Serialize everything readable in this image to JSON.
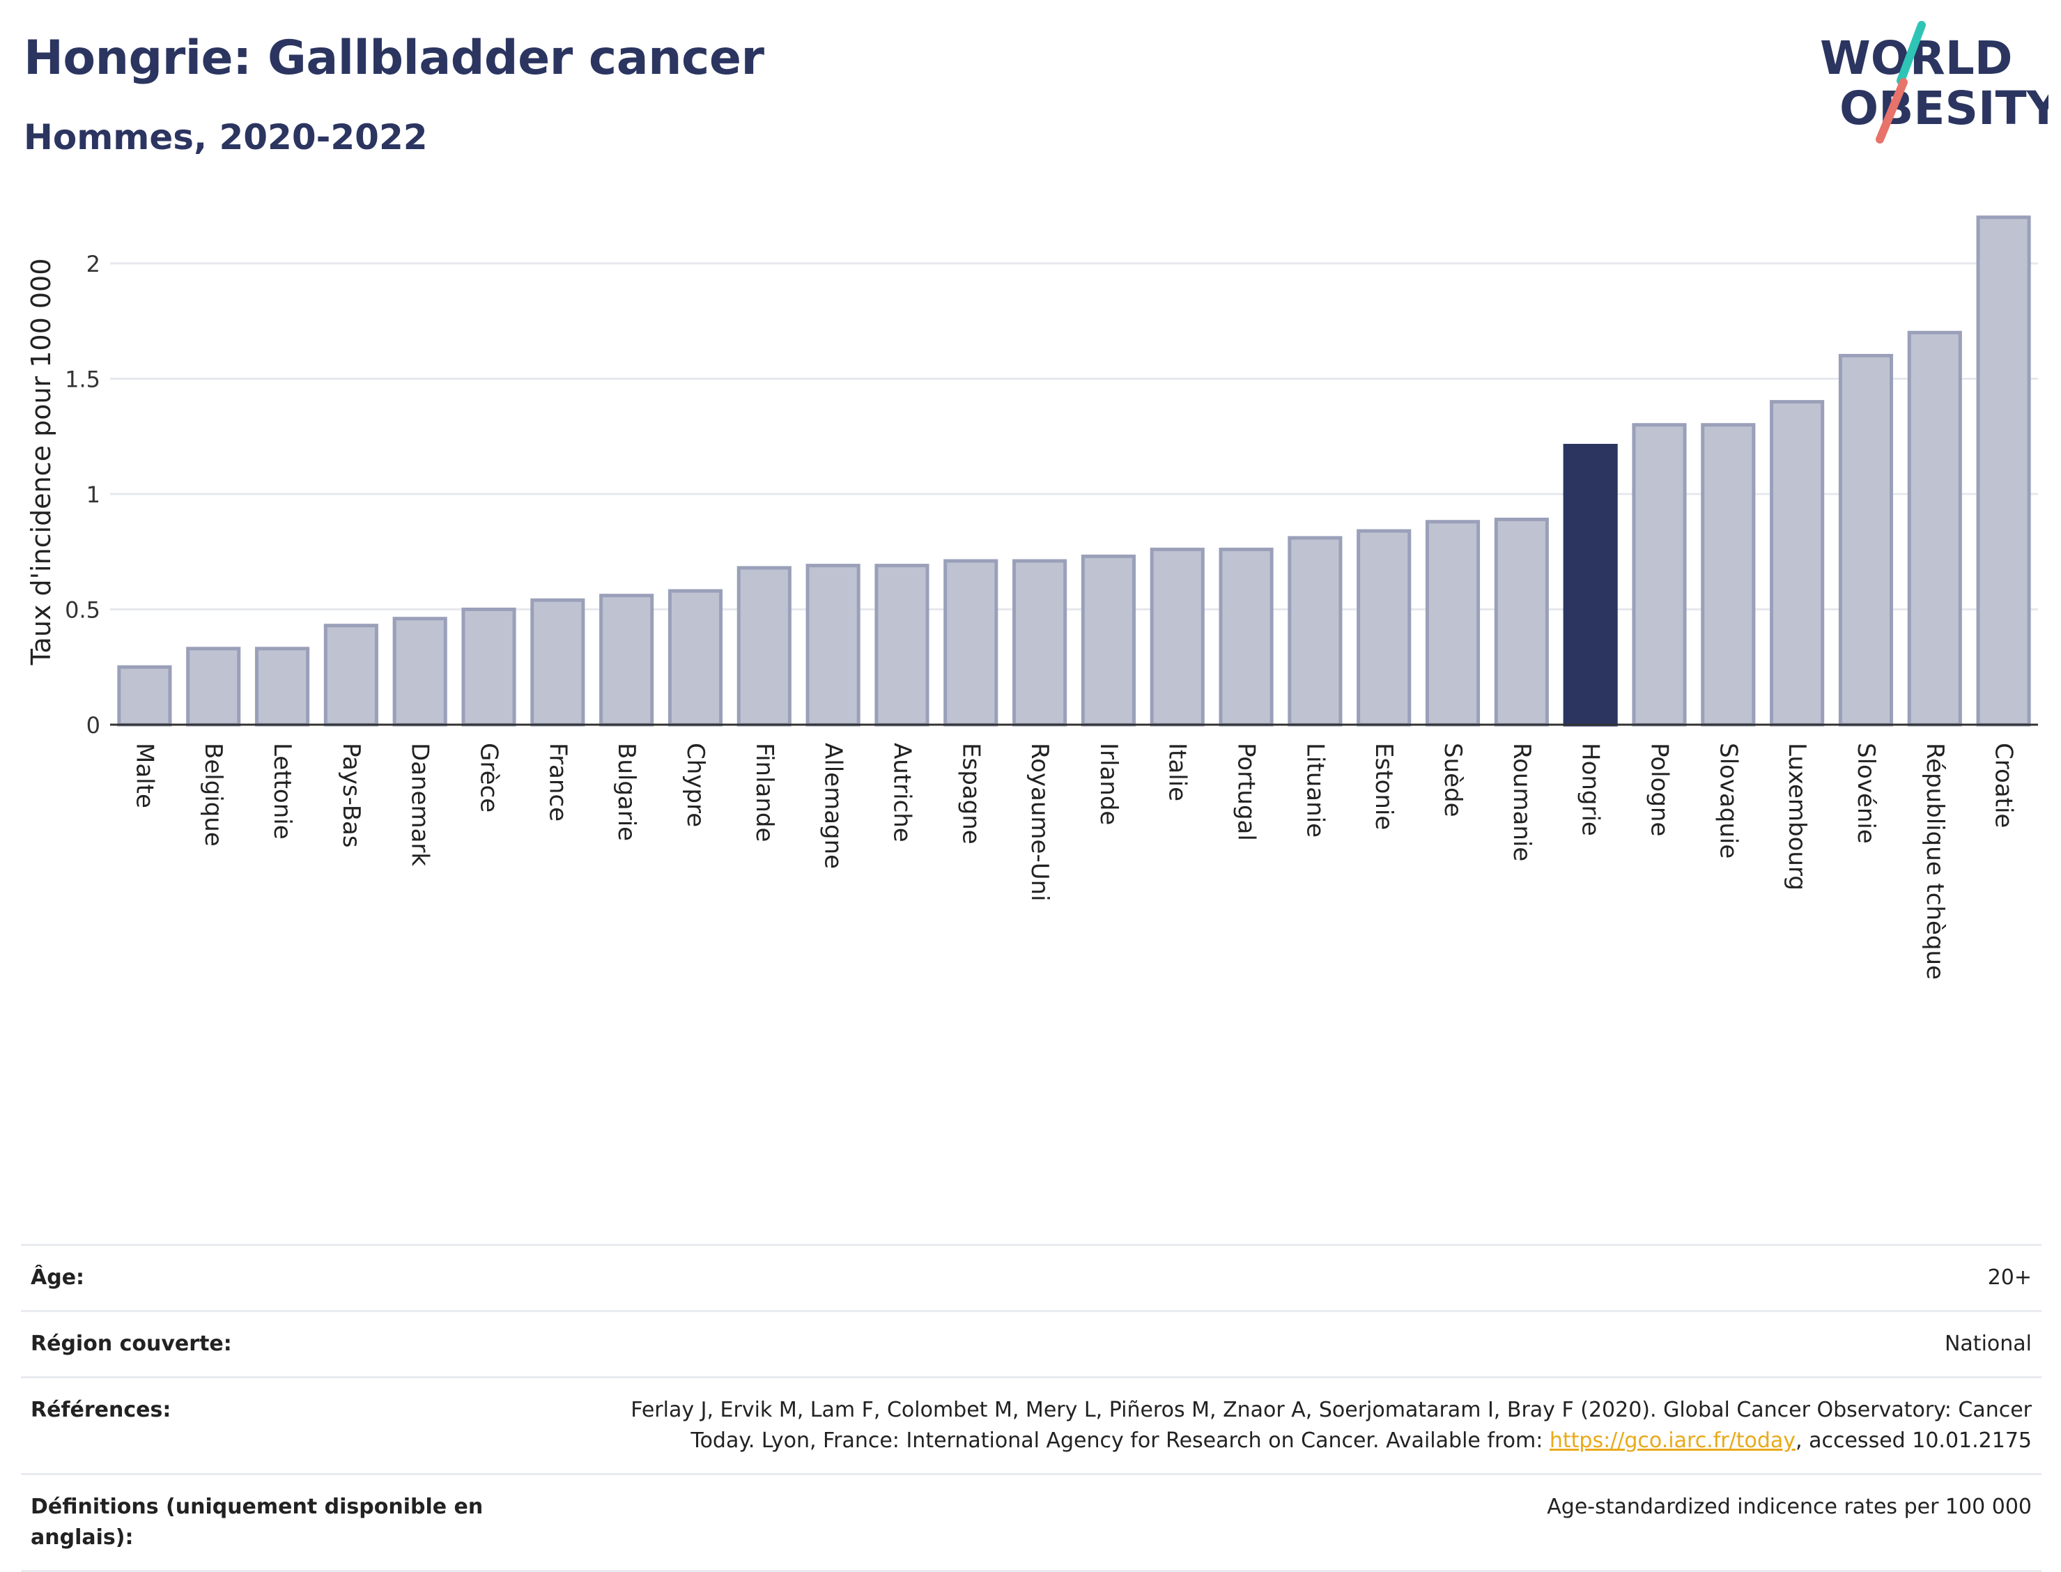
{
  "header": {
    "title": "Hongrie: Gallbladder cancer",
    "subtitle": "Hommes, 2020-2022"
  },
  "logo": {
    "line1": "WORLD",
    "line2": "OBESITY",
    "accent_colors": [
      "#2ec4b6",
      "#e8736a"
    ]
  },
  "colors": {
    "bar": "#bfc3d1",
    "bar_border": "#9aa0b9",
    "highlight": "#2b3560",
    "grid": "#e6e8ee",
    "axis": "#333333"
  },
  "chart_data": {
    "type": "bar",
    "title": "",
    "ylabel": "Taux d'incidence pour 100 000",
    "xlabel": "",
    "ylim": [
      0,
      2.25
    ],
    "yticks": [
      0,
      0.5,
      1,
      1.5,
      2
    ],
    "ytick_labels": [
      "0",
      "0.5",
      "1",
      "1.5",
      "2"
    ],
    "highlight_category": "Hongrie",
    "categories": [
      "Malte",
      "Belgique",
      "Lettonie",
      "Pays-Bas",
      "Danemark",
      "Grèce",
      "France",
      "Bulgarie",
      "Chypre",
      "Finlande",
      "Allemagne",
      "Autriche",
      "Espagne",
      "Royaume-Uni",
      "Irlande",
      "Italie",
      "Portugal",
      "Lituanie",
      "Estonie",
      "Suède",
      "Roumanie",
      "Hongrie",
      "Pologne",
      "Slovaquie",
      "Luxembourg",
      "Slovénie",
      "République tchèque",
      "Croatie"
    ],
    "values": [
      0.25,
      0.33,
      0.33,
      0.43,
      0.46,
      0.5,
      0.54,
      0.56,
      0.58,
      0.68,
      0.69,
      0.69,
      0.71,
      0.71,
      0.73,
      0.76,
      0.76,
      0.81,
      0.84,
      0.88,
      0.89,
      1.21,
      1.3,
      1.3,
      1.4,
      1.6,
      1.7,
      2.2
    ]
  },
  "meta": {
    "age_label": "Âge:",
    "age_value": "20+",
    "region_label": "Région couverte:",
    "region_value": "National",
    "references_label": "Références:",
    "references_text": "Ferlay J, Ervik M, Lam F, Colombet M, Mery L, Piñeros M, Znaor A, Soerjomataram I, Bray F (2020). Global Cancer Observatory: Cancer Today. Lyon, France: International Agency for Research on Cancer. Available from: ",
    "references_link": "https://gco.iarc.fr/today",
    "references_suffix": ", accessed 10.01.2175",
    "definitions_label": "Définitions (uniquement disponible en anglais):",
    "definitions_value": "Age-standardized indicence rates per 100 000"
  }
}
